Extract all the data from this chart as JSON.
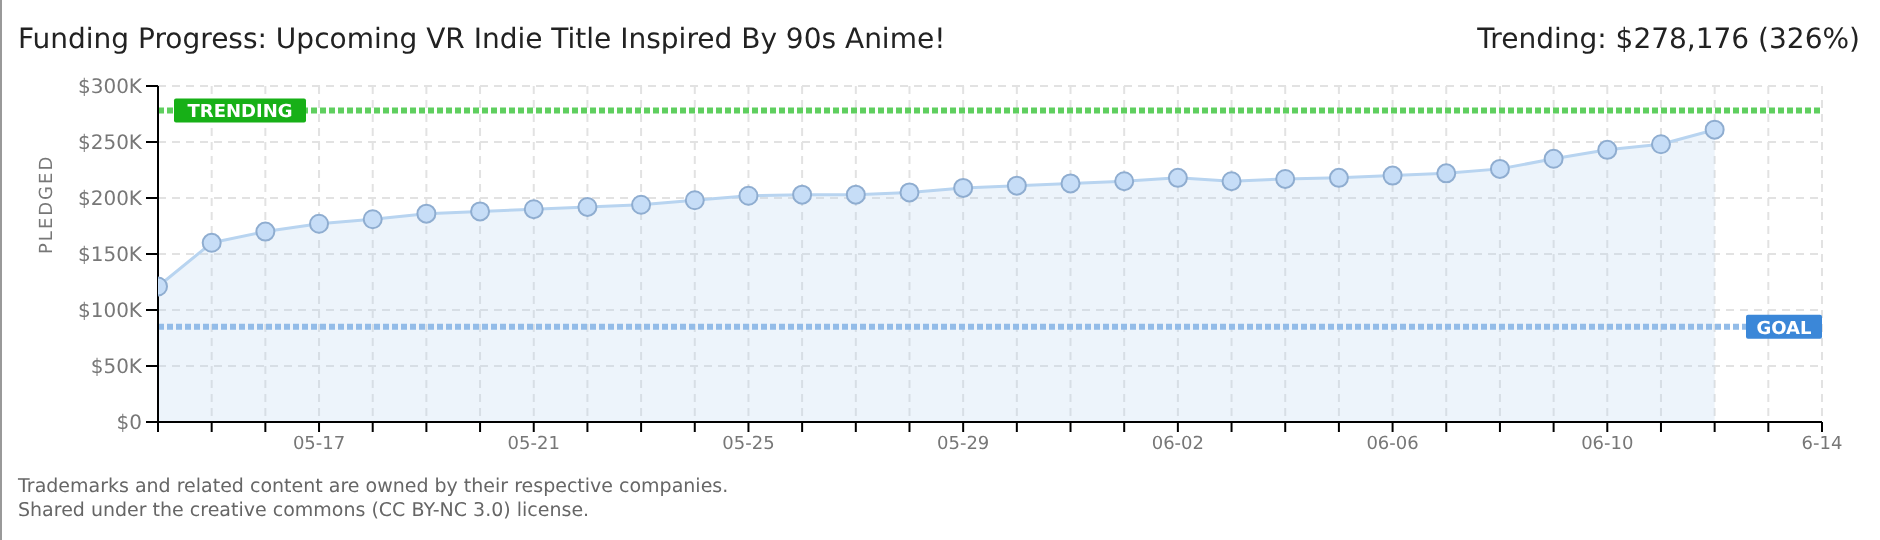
{
  "chart_data": {
    "type": "area",
    "title": "Funding Progress: Upcoming VR Indie Title Inspired By 90s Anime!",
    "annotations": [
      "Trending: $278,176 (326%)",
      "Trademarks and related content are owned by their respective companies.",
      "Shared under the creative commons (CC BY-NC 3.0) license."
    ],
    "ylabel": "PLEDGED",
    "x": [
      "--05-14",
      "--05-15",
      "--05-16",
      "--05-17",
      "--05-18",
      "--05-19",
      "--05-20",
      "--05-21",
      "--05-22",
      "--05-23",
      "--05-24",
      "--05-25",
      "--05-26",
      "--05-27",
      "--05-28",
      "--05-29",
      "--05-30",
      "--05-31",
      "--06-01",
      "--06-02",
      "--06-03",
      "--06-04",
      "--06-05",
      "--06-06",
      "--06-07",
      "--06-08",
      "--06-09",
      "--06-10",
      "--06-11",
      "--06-12"
    ],
    "series": [
      {
        "color": "#b8d4f0",
        "values": [
          121000,
          160000,
          170000,
          177000,
          181000,
          186000,
          188000,
          190000,
          192000,
          194000,
          198000,
          202000,
          203000,
          203000,
          205000,
          209000,
          211000,
          213000,
          215000,
          218000,
          215000,
          217000,
          218000,
          220000,
          222000,
          226000,
          235000,
          243000,
          248000,
          261000
        ]
      }
    ],
    "xlim": [
      "--05-14",
      "--06-14"
    ],
    "xticks": [
      {
        "value": "--05-14",
        "label": null
      },
      {
        "value": "--05-15",
        "label": null
      },
      {
        "value": "--05-16",
        "label": null
      },
      {
        "value": "--05-17",
        "label": "05-17"
      },
      {
        "value": "--05-18",
        "label": null
      },
      {
        "value": "--05-19",
        "label": null
      },
      {
        "value": "--05-20",
        "label": null
      },
      {
        "value": "--05-21",
        "label": "05-21"
      },
      {
        "value": "--05-22",
        "label": null
      },
      {
        "value": "--05-23",
        "label": null
      },
      {
        "value": "--05-24",
        "label": null
      },
      {
        "value": "--05-25",
        "label": "05-25"
      },
      {
        "value": "--05-26",
        "label": null
      },
      {
        "value": "--05-27",
        "label": null
      },
      {
        "value": "--05-28",
        "label": null
      },
      {
        "value": "--05-29",
        "label": "05-29"
      },
      {
        "value": "--05-30",
        "label": null
      },
      {
        "value": "--05-31",
        "label": null
      },
      {
        "value": "--06-01",
        "label": null
      },
      {
        "value": "--06-02",
        "label": "06-02"
      },
      {
        "value": "--06-03",
        "label": null
      },
      {
        "value": "--06-04",
        "label": null
      },
      {
        "value": "--06-05",
        "label": null
      },
      {
        "value": "--06-06",
        "label": "06-06"
      },
      {
        "value": "--06-07",
        "label": null
      },
      {
        "value": "--06-08",
        "label": null
      },
      {
        "value": "--06-09",
        "label": null
      },
      {
        "value": "--06-10",
        "label": "06-10"
      },
      {
        "value": "--06-11",
        "label": null
      },
      {
        "value": "--06-12",
        "label": null
      },
      {
        "value": "--06-13",
        "label": null
      },
      {
        "value": "--06-14",
        "label": "6-14"
      }
    ],
    "ylim": [
      0,
      300000
    ],
    "yticks": [
      {
        "value": 0,
        "label": "$0"
      },
      {
        "value": 50000,
        "label": "$50K"
      },
      {
        "value": 100000,
        "label": "$100K"
      },
      {
        "value": 150000,
        "label": "$150K"
      },
      {
        "value": 200000,
        "label": "$200K"
      },
      {
        "value": 250000,
        "label": "$250K"
      },
      {
        "value": 300000,
        "label": "$300K"
      }
    ],
    "grid": true,
    "marker": "circle",
    "ref_lines": [
      {
        "axis": "y",
        "value": 278176,
        "label": "TRENDING",
        "color": "#5fcf5f"
      },
      {
        "axis": "y",
        "value": 85000,
        "label": "GOAL",
        "color": "#93bce8"
      }
    ]
  }
}
